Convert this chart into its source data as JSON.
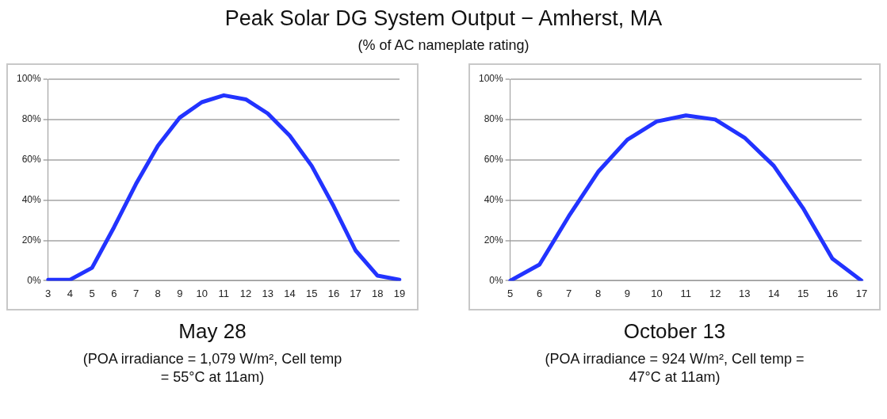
{
  "chart_data": [
    {
      "type": "line",
      "title": "Peak Solar DG System Output − Amherst, MA",
      "subtitle": "(% of AC nameplate rating)",
      "categories": [
        "3",
        "4",
        "5",
        "6",
        "7",
        "8",
        "9",
        "10",
        "11",
        "12",
        "13",
        "14",
        "15",
        "16",
        "17",
        "18",
        "19"
      ],
      "series": [
        {
          "color": "#2233ff",
          "values": [
            0.5,
            0.5,
            6.4,
            26.5,
            48,
            67,
            81,
            88.6,
            92,
            90,
            83,
            72,
            57,
            37,
            15,
            2.5,
            0.5
          ]
        }
      ],
      "ylim": [
        0,
        100
      ],
      "yticks": [
        {
          "value": 0,
          "label": "0%"
        },
        {
          "value": 20,
          "label": "20%"
        },
        {
          "value": 40,
          "label": "40%"
        },
        {
          "value": 60,
          "label": "60%"
        },
        {
          "value": 80,
          "label": "80%"
        },
        {
          "value": 100,
          "label": "100%"
        }
      ],
      "grid": "y",
      "legend": false,
      "marker": "none",
      "line_style": "solid",
      "annotations": [
        "May 28",
        "(POA irradiance = 1,079 W/m², Cell temp = 55°C at 11am)"
      ]
    },
    {
      "type": "line",
      "categories": [
        "5",
        "6",
        "7",
        "8",
        "9",
        "10",
        "11",
        "12",
        "13",
        "14",
        "15",
        "16",
        "17"
      ],
      "series": [
        {
          "color": "#2233ff",
          "values": [
            0,
            8,
            32,
            54,
            70,
            79,
            82,
            80,
            71,
            57,
            36,
            11,
            0
          ]
        }
      ],
      "ylim": [
        0,
        100
      ],
      "yticks": [
        {
          "value": 0,
          "label": "0%"
        },
        {
          "value": 20,
          "label": "20%"
        },
        {
          "value": 40,
          "label": "40%"
        },
        {
          "value": 60,
          "label": "60%"
        },
        {
          "value": 80,
          "label": "80%"
        },
        {
          "value": 100,
          "label": "100%"
        }
      ],
      "grid": "y",
      "legend": false,
      "marker": "none",
      "line_style": "solid",
      "annotations": [
        "October 13",
        "(POA irradiance = 924 W/m², Cell temp = 47°C at 11am)"
      ]
    }
  ]
}
